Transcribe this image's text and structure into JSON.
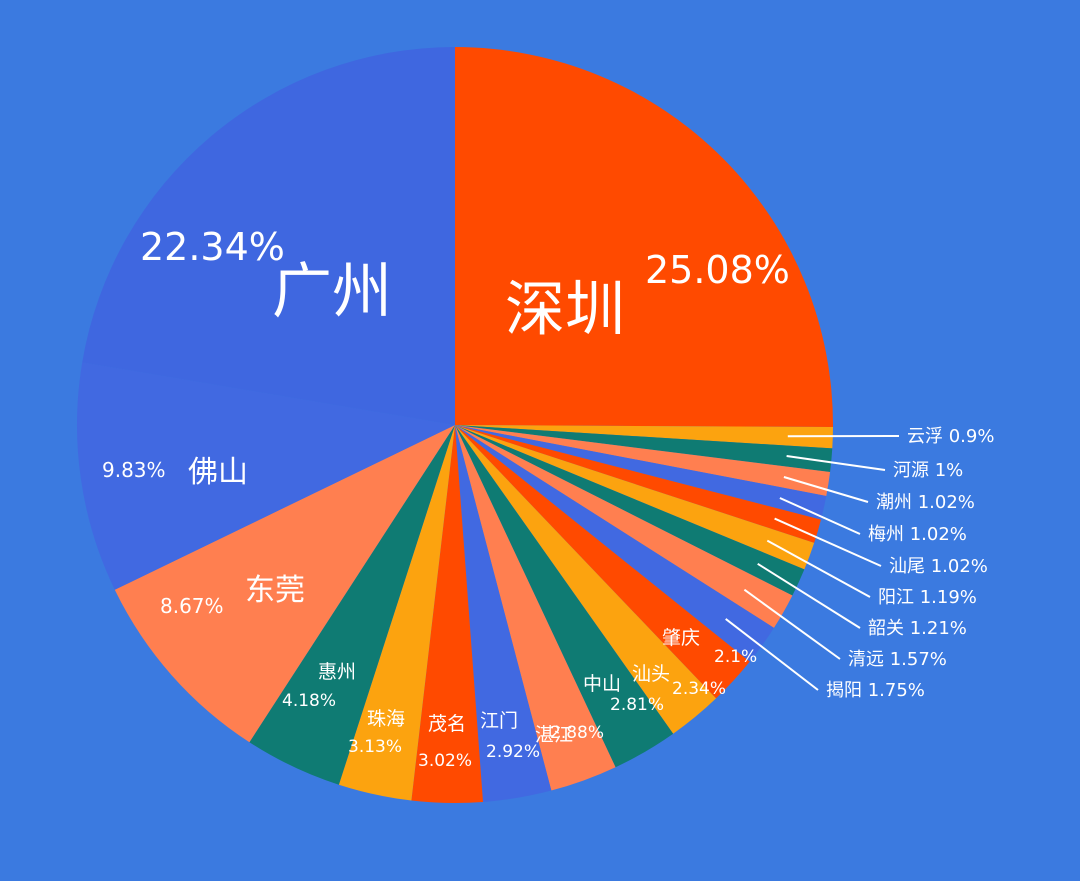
{
  "chart_data": {
    "type": "pie",
    "title": "",
    "start": "12 o'clock, clockwise",
    "slices": [
      {
        "name": "深圳",
        "pct_label": "25.08%",
        "value": 25.08,
        "color": "#ff4a00"
      },
      {
        "name": "云浮",
        "pct_label": "0.9%",
        "value": 0.9,
        "color": "#fca30f"
      },
      {
        "name": "河源",
        "pct_label": "1%",
        "value": 1.0,
        "color": "#0f7b73"
      },
      {
        "name": "潮州",
        "pct_label": "1.02%",
        "value": 1.02,
        "color": "#ff7f50"
      },
      {
        "name": "梅州",
        "pct_label": "1.02%",
        "value": 1.02,
        "color": "#4169e1"
      },
      {
        "name": "汕尾",
        "pct_label": "1.02%",
        "value": 1.02,
        "color": "#ff4a00"
      },
      {
        "name": "阳江",
        "pct_label": "1.19%",
        "value": 1.19,
        "color": "#fca30f"
      },
      {
        "name": "韶关",
        "pct_label": "1.21%",
        "value": 1.21,
        "color": "#0f7b73"
      },
      {
        "name": "清远",
        "pct_label": "1.57%",
        "value": 1.57,
        "color": "#ff7f50"
      },
      {
        "name": "揭阳",
        "pct_label": "1.75%",
        "value": 1.75,
        "color": "#4169e1"
      },
      {
        "name": "肇庆",
        "pct_label": "2.1%",
        "value": 2.1,
        "color": "#ff4a00"
      },
      {
        "name": "汕头",
        "pct_label": "2.34%",
        "value": 2.34,
        "color": "#fca30f"
      },
      {
        "name": "中山",
        "pct_label": "2.81%",
        "value": 2.81,
        "color": "#0f7b73"
      },
      {
        "name": "湛江",
        "pct_label": "2.88%",
        "value": 2.88,
        "color": "#ff7f50"
      },
      {
        "name": "江门",
        "pct_label": "2.92%",
        "value": 2.92,
        "color": "#4169e1"
      },
      {
        "name": "茂名",
        "pct_label": "3.02%",
        "value": 3.02,
        "color": "#ff4a00"
      },
      {
        "name": "珠海",
        "pct_label": "3.13%",
        "value": 3.13,
        "color": "#fca30f"
      },
      {
        "name": "惠州",
        "pct_label": "4.18%",
        "value": 4.18,
        "color": "#0f7b73"
      },
      {
        "name": "东莞",
        "pct_label": "8.67%",
        "value": 8.67,
        "color": "#ff7f50"
      },
      {
        "name": "佛山",
        "pct_label": "9.83%",
        "value": 9.83,
        "color": "#4169e1"
      },
      {
        "name": "广州",
        "pct_label": "22.34%",
        "value": 22.34,
        "color": "#3f67e0"
      }
    ],
    "legend": "none",
    "background_color": "#3b7ae0"
  }
}
